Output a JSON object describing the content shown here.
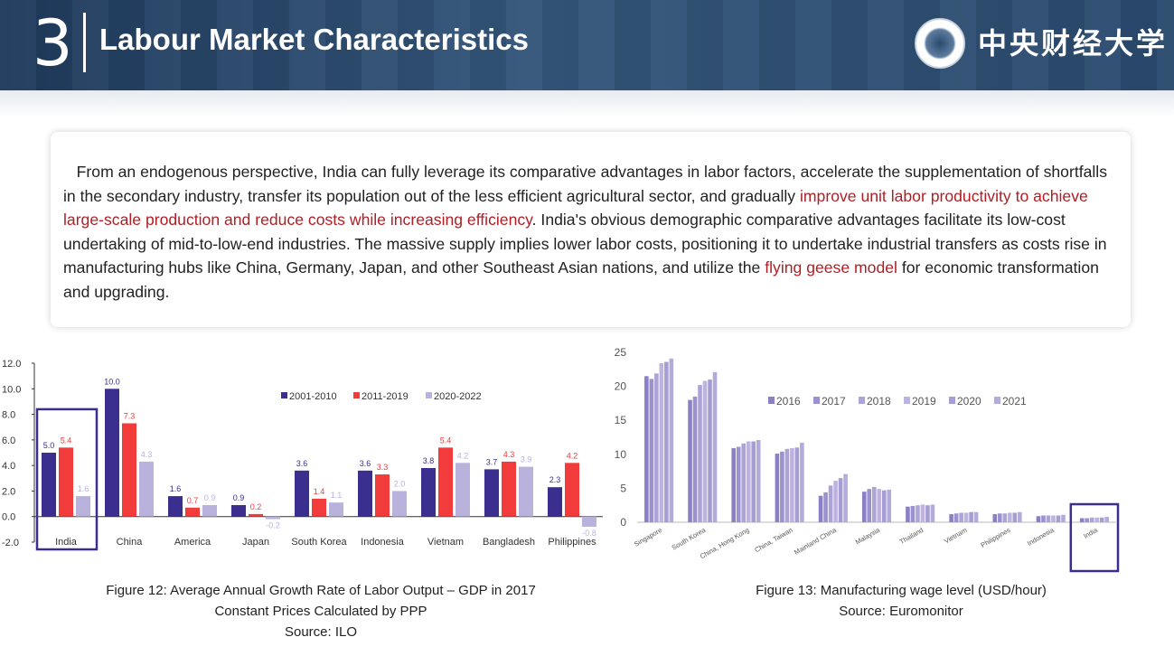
{
  "header": {
    "section_number": "3",
    "title": "Labour Market Characteristics",
    "university_name": "中央财经大学",
    "colors": {
      "bar": "#2a4a6e",
      "text": "#ffffff"
    }
  },
  "intro": {
    "part1": "From an endogenous perspective, India can fully leverage its comparative advantages in labor factors, accelerate the supplementation of shortfalls in the secondary industry, transfer its population out of the less efficient agricultural sector, and gradually ",
    "highlight1": "improve unit labor productivity to achieve large-scale production and reduce costs while increasing efficiency",
    "part2": ". India's obvious demographic comparative advantages facilitate its low-cost undertaking of mid-to-low-end industries. The massive supply implies lower labor costs, positioning it to undertake industrial transfers as costs rise in manufacturing hubs like China, Germany, Japan, and other Southeast Asian nations, and utilize the ",
    "highlight2": "flying geese model",
    "part3": " for economic transformation and upgrading.",
    "highlight_color": "#b01e24"
  },
  "chart_data": [
    {
      "type": "bar",
      "categories": [
        "India",
        "China",
        "America",
        "Japan",
        "South Korea",
        "Indonesia",
        "Vietnam",
        "Bangladesh",
        "Philippines"
      ],
      "series": [
        {
          "name": "2001-2010",
          "color": "#3a2f8f",
          "values": [
            5.0,
            10.0,
            1.6,
            0.9,
            3.6,
            3.6,
            3.8,
            3.7,
            2.3
          ]
        },
        {
          "name": "2011-2019",
          "color": "#f23b3b",
          "values": [
            5.4,
            7.3,
            0.7,
            0.2,
            1.4,
            3.3,
            5.4,
            4.3,
            4.2
          ]
        },
        {
          "name": "2020-2022",
          "color": "#b9b2dc",
          "values": [
            1.6,
            4.3,
            0.9,
            -0.2,
            1.1,
            2.0,
            4.2,
            3.9,
            -0.8
          ]
        }
      ],
      "value_labels": [
        [
          "5.0",
          "10.0",
          "1.6",
          "0.9",
          "3.6",
          "3.6",
          "3.8",
          "3.7",
          "2.3"
        ],
        [
          "5.4",
          "7.3",
          "0.7",
          "0.2",
          "1.4",
          "3.3",
          "5.4",
          "4.3",
          "4.2"
        ],
        [
          "1.6",
          "4.3",
          "0.9",
          "-0.2",
          "1.1",
          "2.0",
          "4.2",
          "3.9",
          "-0.8"
        ]
      ],
      "yticks": [
        "12.0",
        "10.0",
        "8.0",
        "6.0",
        "4.0",
        "2.0",
        "0.0",
        "-2.0"
      ],
      "ylim": [
        -2,
        12
      ],
      "legend": "top-right",
      "highlighted_category": "India",
      "highlight_color": "#3a2f8f",
      "caption": [
        "Figure 12: Average Annual Growth Rate of Labor Output – GDP in 2017",
        "Constant Prices Calculated by PPP",
        "Source: ILO"
      ]
    },
    {
      "type": "bar",
      "categories": [
        "Singapore",
        "South Korea",
        "China, Hong Kong",
        "China, Taiwan",
        "Mainland China",
        "Malaysia",
        "Thailand",
        "Vietnam",
        "Philippines",
        "Indonesia",
        "India"
      ],
      "series": [
        {
          "name": "2016",
          "values": [
            21.5,
            18.0,
            10.9,
            10.1,
            3.9,
            4.5,
            2.3,
            1.2,
            1.2,
            0.9,
            0.6
          ]
        },
        {
          "name": "2017",
          "values": [
            21.1,
            18.5,
            11.1,
            10.4,
            4.4,
            4.9,
            2.4,
            1.3,
            1.3,
            1.0,
            0.6
          ]
        },
        {
          "name": "2018",
          "values": [
            21.9,
            20.2,
            11.6,
            10.8,
            5.4,
            5.2,
            2.5,
            1.4,
            1.3,
            1.0,
            0.7
          ]
        },
        {
          "name": "2019",
          "values": [
            23.4,
            20.8,
            11.9,
            10.9,
            6.1,
            4.9,
            2.6,
            1.4,
            1.4,
            1.0,
            0.7
          ]
        },
        {
          "name": "2020",
          "values": [
            23.6,
            21.0,
            11.9,
            11.0,
            6.5,
            4.7,
            2.5,
            1.5,
            1.4,
            1.0,
            0.7
          ]
        },
        {
          "name": "2021",
          "values": [
            24.1,
            22.1,
            12.1,
            11.7,
            7.1,
            4.8,
            2.6,
            1.5,
            1.5,
            1.1,
            0.8
          ]
        }
      ],
      "series_colors": [
        "#8b7fc6",
        "#9c91cf",
        "#ada3d7",
        "#bcb3de",
        "#a79dd4",
        "#b3abd9"
      ],
      "yticks": [
        "25",
        "20",
        "15",
        "10",
        "5",
        "0"
      ],
      "ylim": [
        0,
        25
      ],
      "legend": "top-right",
      "highlighted_category": "India",
      "highlight_color": "#3a2f8f",
      "caption": [
        "Figure 13: Manufacturing wage level (USD/hour)",
        "Source: Euromonitor"
      ]
    }
  ]
}
